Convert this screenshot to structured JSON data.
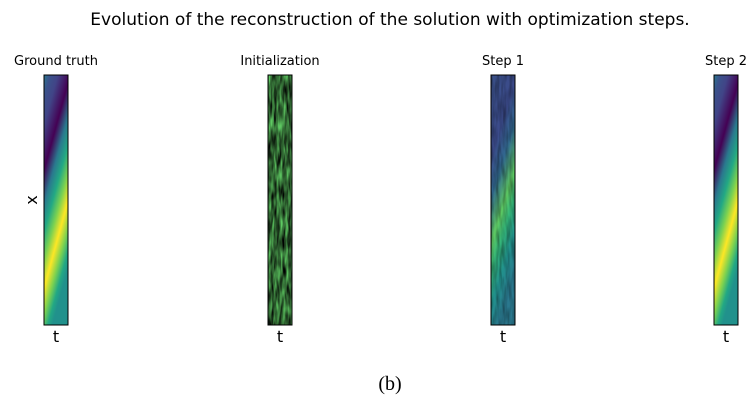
{
  "title": "Evolution of the reconstruction of the solution with optimization steps.",
  "ylabel": "x",
  "panels": [
    {
      "title": "Ground truth",
      "xlabel": "t"
    },
    {
      "title": "Initialization",
      "xlabel": "t"
    },
    {
      "title": "Step 1",
      "xlabel": "t"
    },
    {
      "title": "Step 2",
      "xlabel": "t"
    }
  ],
  "caption": "(b)"
}
